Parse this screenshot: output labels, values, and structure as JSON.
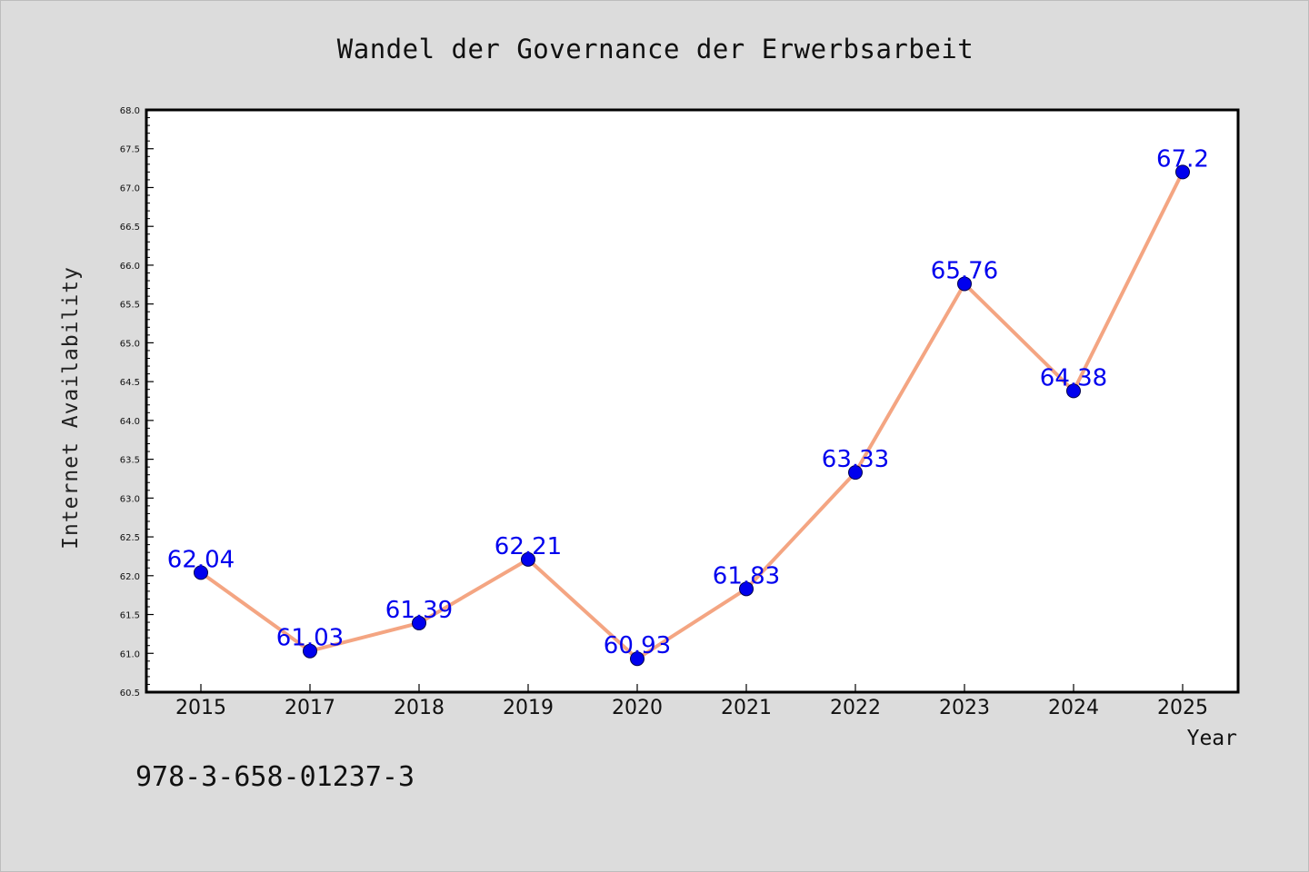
{
  "chart_data": {
    "type": "line",
    "title": "Wandel der Governance der Erwerbsarbeit",
    "xlabel": "Year",
    "ylabel": "Internet Availability",
    "categories": [
      "2015",
      "2017",
      "2018",
      "2019",
      "2020",
      "2021",
      "2022",
      "2023",
      "2024",
      "2025"
    ],
    "series": [
      {
        "values": [
          62.04,
          61.03,
          61.39,
          62.21,
          60.93,
          61.83,
          63.33,
          65.76,
          64.38,
          67.2
        ],
        "labels": [
          "62.04",
          "61.03",
          "61.39",
          "62.21",
          "60.93",
          "61.83",
          "63.33",
          "65.76",
          "64.38",
          "67.2"
        ],
        "line_color": "#f4a582",
        "marker_color": "#0000ee"
      }
    ],
    "ylim": [
      60.5,
      68.0
    ],
    "yticks": [
      "60.5",
      "61.0",
      "61.5",
      "62.0",
      "62.5",
      "63.0",
      "63.5",
      "64.0",
      "64.5",
      "65.0",
      "65.5",
      "66.0",
      "66.5",
      "67.0",
      "67.5",
      "68.0"
    ],
    "grid": false,
    "legend": "none"
  },
  "footer": {
    "isbn": "978-3-658-01237-3"
  },
  "colors": {
    "background": "#dcdcdc",
    "plot_area": "#ffffff",
    "axes": "#000000",
    "label_text": "#0000ee"
  }
}
